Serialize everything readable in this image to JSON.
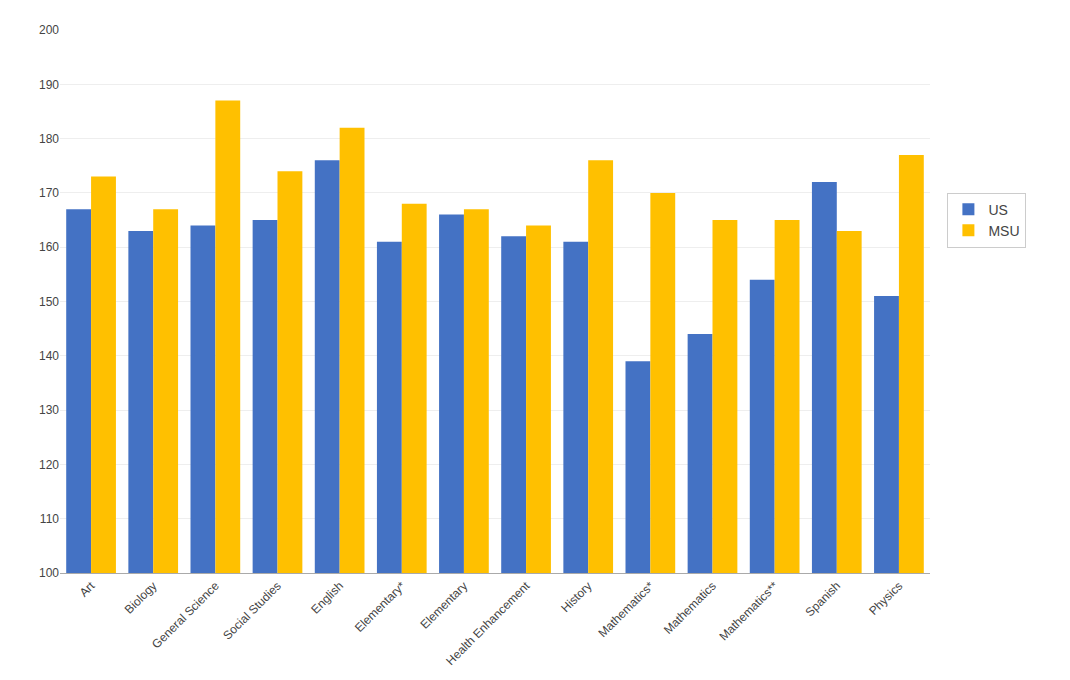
{
  "chart_data": {
    "type": "bar",
    "categories": [
      "Art",
      "Biology",
      "General Science",
      "Social Studies",
      "English",
      "Elementary*",
      "Elementary",
      "Health Enhancement",
      "History",
      "Mathematics*",
      "Mathematics",
      "Mathematics**",
      "Spanish",
      "Physics"
    ],
    "series": [
      {
        "name": "US",
        "color": "#4472C4",
        "values": [
          167,
          163,
          164,
          165,
          176,
          161,
          166,
          162,
          161,
          139,
          144,
          154,
          172,
          151
        ]
      },
      {
        "name": "MSU",
        "color": "#FFC000",
        "values": [
          173,
          167,
          187,
          174,
          182,
          168,
          167,
          164,
          176,
          170,
          165,
          165,
          163,
          177
        ]
      }
    ],
    "ylim": [
      100,
      200
    ],
    "yticks": [
      100,
      110,
      120,
      130,
      140,
      150,
      160,
      170,
      180,
      190,
      200
    ],
    "grid": true,
    "legend": "right"
  }
}
